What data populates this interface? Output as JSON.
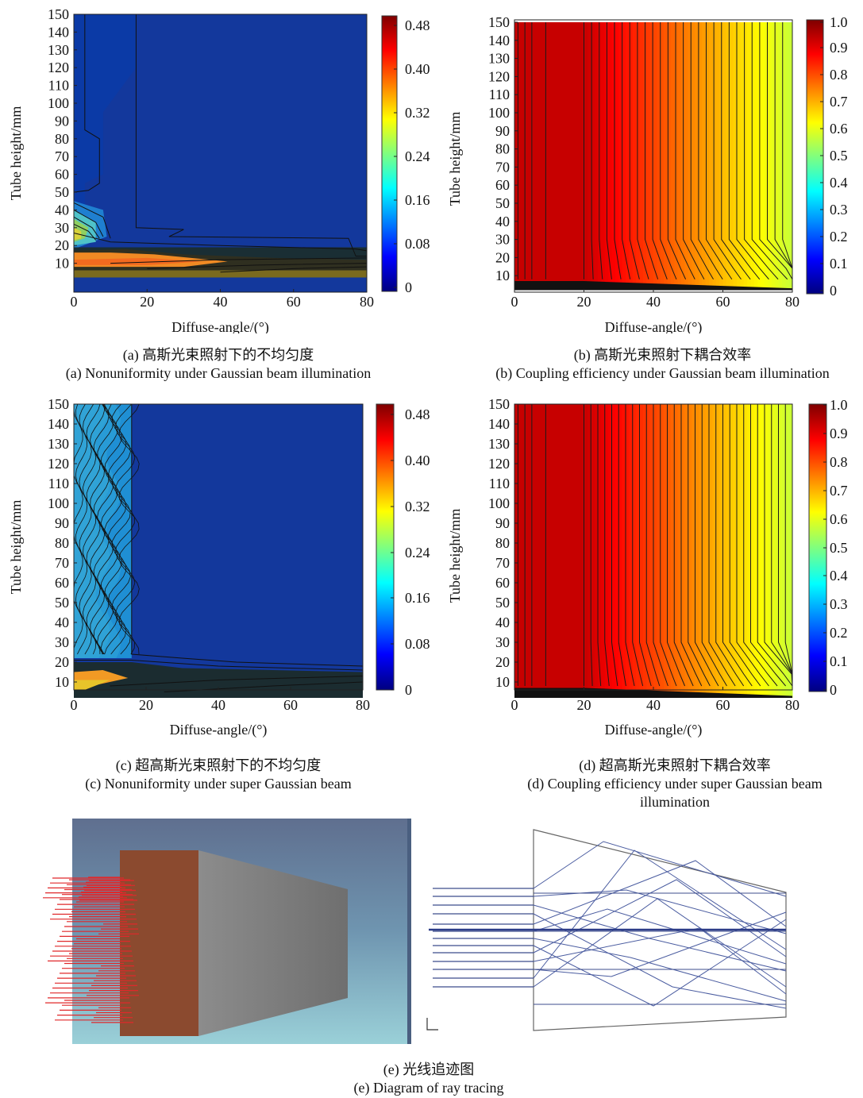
{
  "chart_data": [
    {
      "type": "heatmap",
      "id": "a",
      "xlabel": "Diffuse-angle/(°)",
      "ylabel": "Tube height/mm",
      "xticks": [
        0,
        20,
        40,
        60,
        80
      ],
      "yticks": [
        10,
        20,
        30,
        40,
        50,
        60,
        70,
        80,
        90,
        100,
        110,
        120,
        130,
        140,
        150
      ],
      "xlim": [
        0,
        80
      ],
      "ylim": [
        2,
        150
      ],
      "colorbar": {
        "ticks": [
          "0",
          "0.08",
          "0.16",
          "0.24",
          "0.32",
          "0.40",
          "0.48"
        ],
        "min": 0,
        "max": 0.5
      },
      "caption_cn": "(a) 高斯光束照射下的不均匀度",
      "caption_en": "(a) Nonuniformity under Gaussian beam illumination"
    },
    {
      "type": "heatmap",
      "id": "b",
      "xlabel": "Diffuse-angle/(°)",
      "ylabel": "Tube height/mm",
      "xticks": [
        0,
        20,
        40,
        60,
        80
      ],
      "yticks": [
        10,
        20,
        30,
        40,
        50,
        60,
        70,
        80,
        90,
        100,
        110,
        120,
        130,
        140,
        150
      ],
      "xlim": [
        0,
        80
      ],
      "ylim": [
        2,
        150
      ],
      "colorbar": {
        "ticks": [
          "0",
          "0.1",
          "0.2",
          "0.3",
          "0.4",
          "0.5",
          "0.6",
          "0.7",
          "0.8",
          "0.9",
          "1.0"
        ],
        "min": 0,
        "max": 1.0
      },
      "caption_cn": "(b) 高斯光束照射下耦合效率",
      "caption_en": "(b) Coupling efficiency under Gaussian beam illumination"
    },
    {
      "type": "heatmap",
      "id": "c",
      "xlabel": "Diffuse-angle/(°)",
      "ylabel": "Tube height/mm",
      "xticks": [
        0,
        20,
        40,
        60,
        80
      ],
      "yticks": [
        10,
        20,
        30,
        40,
        50,
        60,
        70,
        80,
        90,
        100,
        110,
        120,
        130,
        140,
        150
      ],
      "xlim": [
        0,
        80
      ],
      "ylim": [
        2,
        150
      ],
      "colorbar": {
        "ticks": [
          "0",
          "0.08",
          "0.16",
          "0.24",
          "0.32",
          "0.40",
          "0.48"
        ],
        "min": 0,
        "max": 0.5
      },
      "caption_cn": "(c) 超高斯光束照射下的不均匀度",
      "caption_en": "(c) Nonuniformity under super Gaussian beam"
    },
    {
      "type": "heatmap",
      "id": "d",
      "xlabel": "Diffuse-angle/(°)",
      "ylabel": "Tube height/mm",
      "xticks": [
        0,
        20,
        40,
        60,
        80
      ],
      "yticks": [
        10,
        20,
        30,
        40,
        50,
        60,
        70,
        80,
        90,
        100,
        110,
        120,
        130,
        140,
        150
      ],
      "xlim": [
        0,
        80
      ],
      "ylim": [
        2,
        150
      ],
      "colorbar": {
        "ticks": [
          "0",
          "0.1",
          "0.2",
          "0.3",
          "0.4",
          "0.5",
          "0.6",
          "0.7",
          "0.8",
          "0.9",
          "1.0"
        ],
        "min": 0,
        "max": 1.0
      },
      "caption_cn": "(d) 超高斯光束照射下耦合效率",
      "caption_en": "(d) Coupling efficiency under super Gaussian beam illumination"
    }
  ],
  "ray_tracing": {
    "caption_cn": "(e) 光线追迹图",
    "caption_en": "(e) Diagram of ray tracing"
  }
}
